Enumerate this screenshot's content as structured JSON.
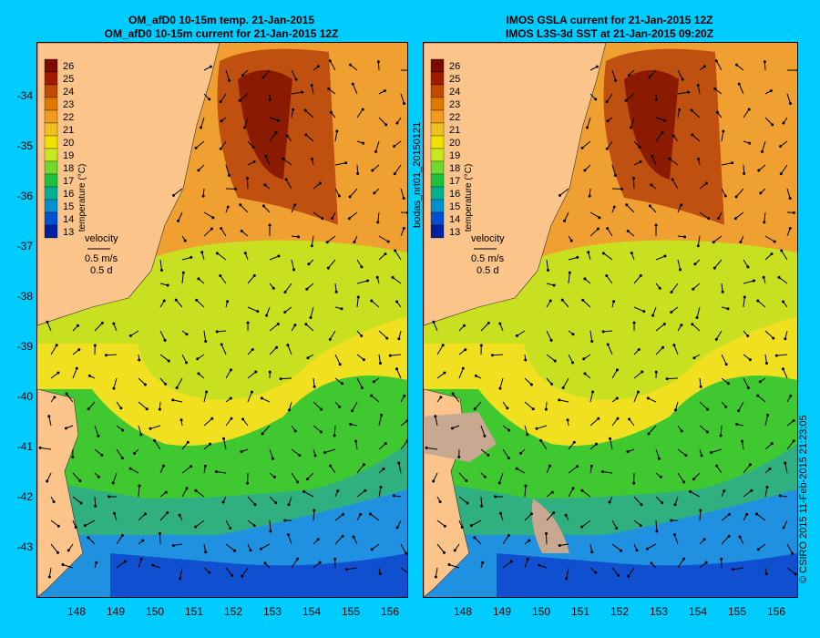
{
  "titles": {
    "left": [
      "OM_afD0 10-15m temp. 21-Jan-2015",
      "OM_afD0 10-15m current for 21-Jan-2015 12Z"
    ],
    "right": [
      "IMOS GSLA current for 21-Jan-2015 12Z",
      "IMOS L3S-3d SST at 21-Jan-2015 09:20Z"
    ]
  },
  "map": {
    "y_ticks": [
      "-34",
      "-35",
      "-36",
      "-37",
      "-38",
      "-39",
      "-40",
      "-41",
      "-42",
      "-43"
    ],
    "x_ticks": [
      "148",
      "149",
      "150",
      "151",
      "152",
      "153",
      "154",
      "155",
      "156"
    ]
  },
  "colorbar": {
    "labels": [
      "26",
      "25",
      "24",
      "23",
      "22",
      "21",
      "20",
      "19",
      "18",
      "17",
      "16",
      "15",
      "14",
      "13"
    ],
    "colors": [
      "#7a0a00",
      "#a01a00",
      "#c04a00",
      "#e07800",
      "#f09a20",
      "#f0c020",
      "#f0e000",
      "#c8e820",
      "#70d830",
      "#20c040",
      "#00b090",
      "#0090d0",
      "#0050d0",
      "#0020a0"
    ],
    "axis_label": "temperature (°C)"
  },
  "velocity_key": {
    "label": "velocity",
    "speed": "0.5 m/s",
    "time": "0.5 d"
  },
  "side_labels": {
    "file": "bodas_nrt01_20150121",
    "credit": "© CSIRO 2015   11-Feb-2015 21:23:05"
  }
}
